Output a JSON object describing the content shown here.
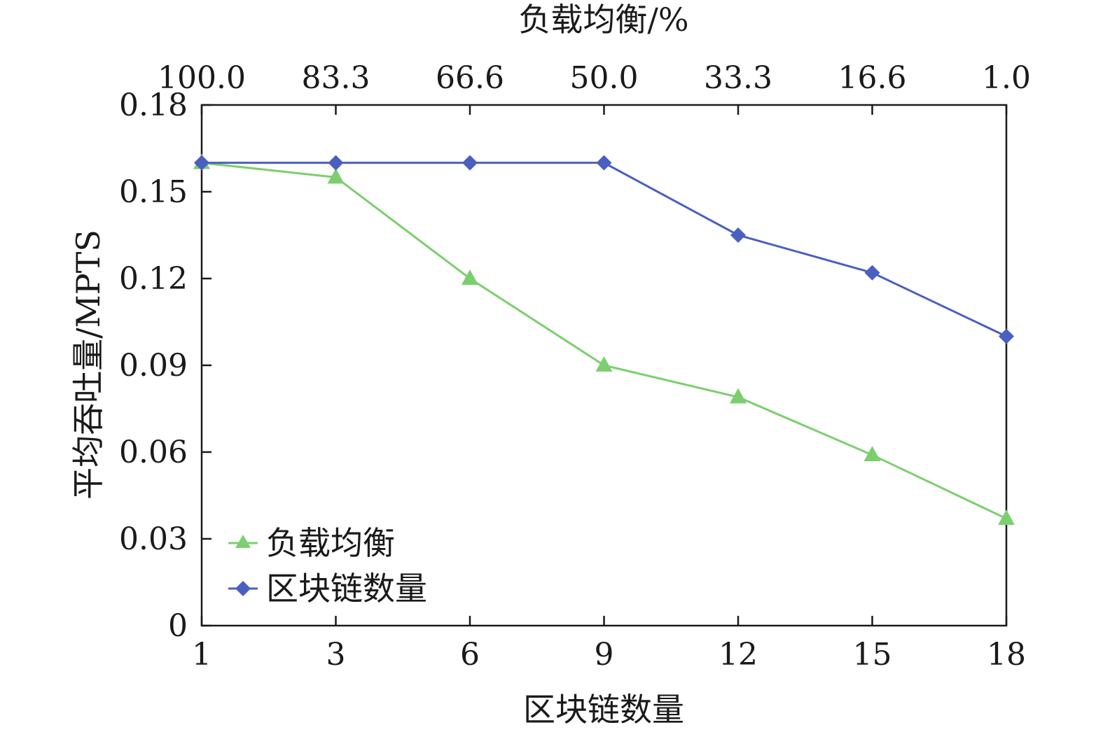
{
  "chart_data": {
    "type": "line",
    "xlabel": "区块链数量",
    "x2label": "负载均衡/%",
    "ylabel": "平均吞吐量/MPTS",
    "x_ticks": [
      "1",
      "3",
      "6",
      "9",
      "12",
      "15",
      "18"
    ],
    "x2_ticks": [
      "100.0",
      "83.3",
      "66.6",
      "50.0",
      "33.3",
      "16.6",
      "1.0"
    ],
    "y_ticks": [
      "0",
      "0.03",
      "0.06",
      "0.09",
      "0.12",
      "0.15",
      "0.18"
    ],
    "ylim": [
      0,
      0.18
    ],
    "legend_position": "bottom-left",
    "series": [
      {
        "name": "负载均衡",
        "marker": "triangle",
        "color": "#7ccf6e",
        "values": [
          0.16,
          0.155,
          0.12,
          0.09,
          0.079,
          0.059,
          0.037
        ]
      },
      {
        "name": "区块链数量",
        "marker": "diamond",
        "color": "#4a5fc1",
        "values": [
          0.16,
          0.16,
          0.16,
          0.16,
          0.135,
          0.122,
          0.1
        ]
      }
    ]
  }
}
